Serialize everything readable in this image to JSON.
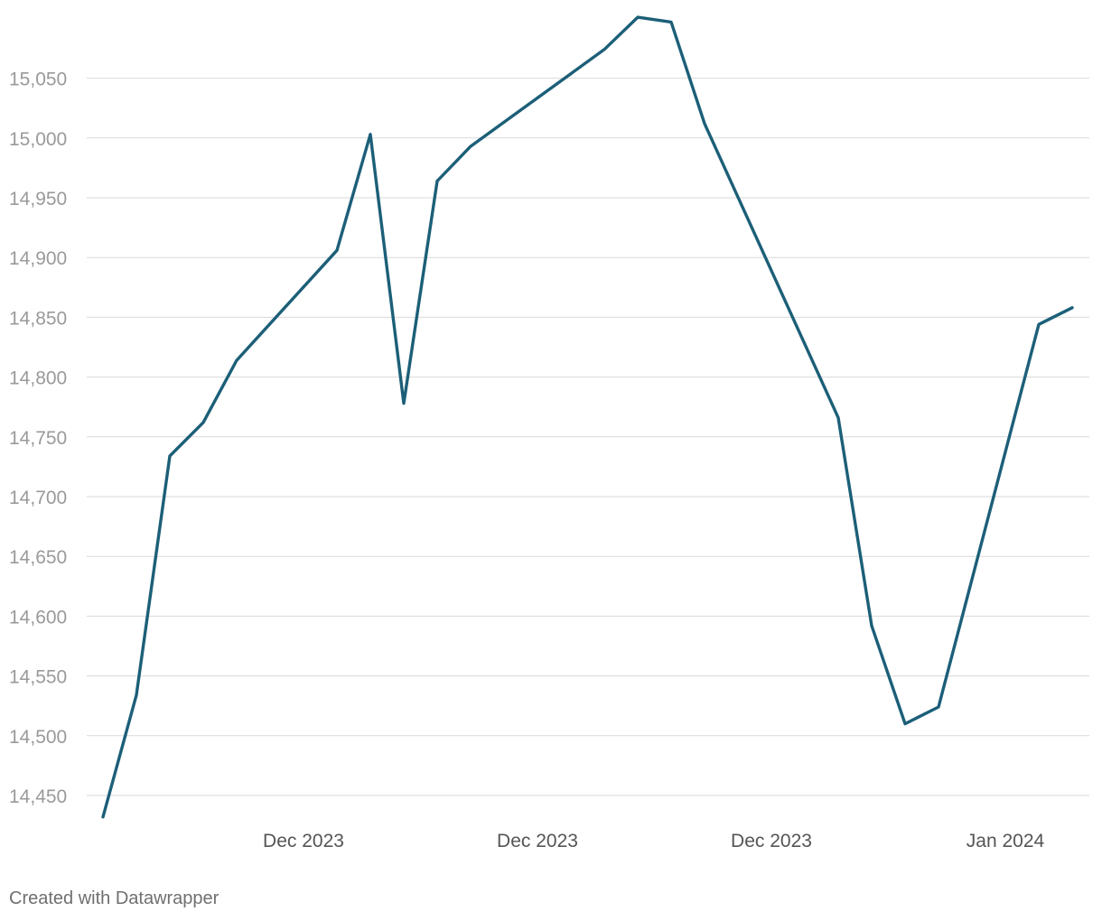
{
  "credit": "Created with Datawrapper",
  "chart_data": {
    "type": "line",
    "title": "",
    "xlabel": "",
    "ylabel": "",
    "ylim": [
      14440,
      15100
    ],
    "yticks": [
      14450,
      14500,
      14550,
      14600,
      14650,
      14700,
      14750,
      14800,
      14850,
      14900,
      14950,
      15000,
      15050
    ],
    "ytick_labels": [
      "14,450",
      "14,500",
      "14,550",
      "14,600",
      "14,650",
      "14,700",
      "14,750",
      "14,800",
      "14,850",
      "14,900",
      "14,950",
      "15,000",
      "15,050"
    ],
    "xticks": [
      {
        "date": "2023-12-07",
        "label": "Dec 2023"
      },
      {
        "date": "2023-12-14",
        "label": "Dec 2023"
      },
      {
        "date": "2023-12-21",
        "label": "Dec 2023"
      },
      {
        "date": "2023-12-28",
        "label": "Jan 2024"
      }
    ],
    "grid": true,
    "series": [
      {
        "color": "#1c5f78",
        "points": [
          {
            "x": "2023-12-01",
            "y": 14432
          },
          {
            "x": "2023-12-02",
            "y": 14534
          },
          {
            "x": "2023-12-03",
            "y": 14734
          },
          {
            "x": "2023-12-04",
            "y": 14762
          },
          {
            "x": "2023-12-05",
            "y": 14814
          },
          {
            "x": "2023-12-08",
            "y": 14906
          },
          {
            "x": "2023-12-09",
            "y": 15003
          },
          {
            "x": "2023-12-10",
            "y": 14778
          },
          {
            "x": "2023-12-11",
            "y": 14964
          },
          {
            "x": "2023-12-12",
            "y": 14993
          },
          {
            "x": "2023-12-16",
            "y": 15074
          },
          {
            "x": "2023-12-17",
            "y": 15101
          },
          {
            "x": "2023-12-18",
            "y": 15097
          },
          {
            "x": "2023-12-19",
            "y": 15012
          },
          {
            "x": "2023-12-23",
            "y": 14766
          },
          {
            "x": "2023-12-24",
            "y": 14592
          },
          {
            "x": "2023-12-25",
            "y": 14510
          },
          {
            "x": "2023-12-26",
            "y": 14524
          },
          {
            "x": "2023-12-29",
            "y": 14844
          },
          {
            "x": "2023-12-30",
            "y": 14858
          }
        ]
      }
    ]
  }
}
